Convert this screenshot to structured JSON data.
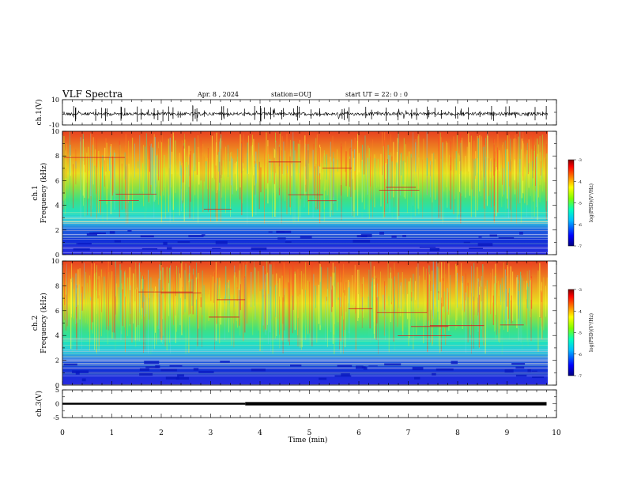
{
  "header": {
    "title": "VLF Spectra",
    "date": "Apr. 8 , 2024",
    "station": "station=OUJ",
    "start": "start UT = 22: 0 : 0"
  },
  "colorbar": {
    "label": "log(PSD)(V²/Hz)",
    "ticks": [
      "-3",
      "-4",
      "-5",
      "-6",
      "-7"
    ],
    "colors": [
      "#00007f",
      "#0000ff",
      "#00bfff",
      "#00ffbf",
      "#7fff00",
      "#ffff00",
      "#ff7f00",
      "#ff0000",
      "#7f0000"
    ]
  },
  "chart_data": [
    {
      "type": "line",
      "ylabel": "ch.1(V)",
      "y_ticks": [
        "10",
        "-10"
      ],
      "ylim": [
        -10,
        10
      ],
      "xlim": [
        0,
        10
      ],
      "approx_baseline_value": 0
    },
    {
      "type": "heatmap",
      "ylabel": "ch.1\nFrequency (kHz)",
      "y_ticks": [
        "10",
        "8",
        "6",
        "4",
        "2",
        "0"
      ],
      "ylim": [
        0,
        10
      ],
      "xlim": [
        0,
        10
      ],
      "colorbar_range": [
        -7,
        -3
      ]
    },
    {
      "type": "heatmap",
      "ylabel": "ch.2\nFrequency (kHz)",
      "y_ticks": [
        "10",
        "8",
        "6",
        "4",
        "2",
        "0"
      ],
      "ylim": [
        0,
        10
      ],
      "xlim": [
        0,
        10
      ],
      "colorbar_range": [
        -7,
        -3
      ]
    },
    {
      "type": "line",
      "ylabel": "ch.3(V)",
      "y_ticks": [
        "5",
        "0",
        "-5"
      ],
      "ylim": [
        -5,
        5
      ],
      "xlim": [
        0,
        10
      ],
      "x": [
        0,
        3.7,
        3.7,
        9.8
      ],
      "y": [
        0,
        0,
        0,
        0
      ]
    }
  ],
  "x_axis": {
    "label": "Time (min)",
    "ticks": [
      "0",
      "1",
      "2",
      "3",
      "4",
      "5",
      "6",
      "7",
      "8",
      "9",
      "10"
    ]
  }
}
